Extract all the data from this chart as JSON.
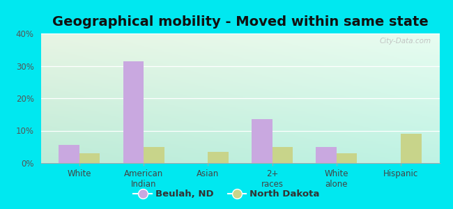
{
  "title": "Geographical mobility - Moved within same state",
  "categories": [
    "White",
    "American\nIndian",
    "Asian",
    "2+\nraces",
    "White\nalone",
    "Hispanic"
  ],
  "beulah_values": [
    5.5,
    31.5,
    0,
    13.5,
    5.0,
    0
  ],
  "nd_values": [
    3.0,
    5.0,
    3.5,
    5.0,
    3.0,
    9.0
  ],
  "beulah_color": "#c9a8e0",
  "nd_color": "#c8d48a",
  "ylim": [
    0,
    40
  ],
  "yticks": [
    0,
    10,
    20,
    30,
    40
  ],
  "ytick_labels": [
    "0%",
    "10%",
    "20%",
    "30%",
    "40%"
  ],
  "legend_labels": [
    "Beulah, ND",
    "North Dakota"
  ],
  "bar_width": 0.32,
  "background_color_outer": "#00e8f0",
  "watermark": "City-Data.com",
  "title_fontsize": 14,
  "axis_fontsize": 8.5,
  "legend_fontsize": 9.5,
  "grid_color": "#e0e8d8",
  "grad_top": "#e8f5e4",
  "grad_bottom": "#c8eee0"
}
